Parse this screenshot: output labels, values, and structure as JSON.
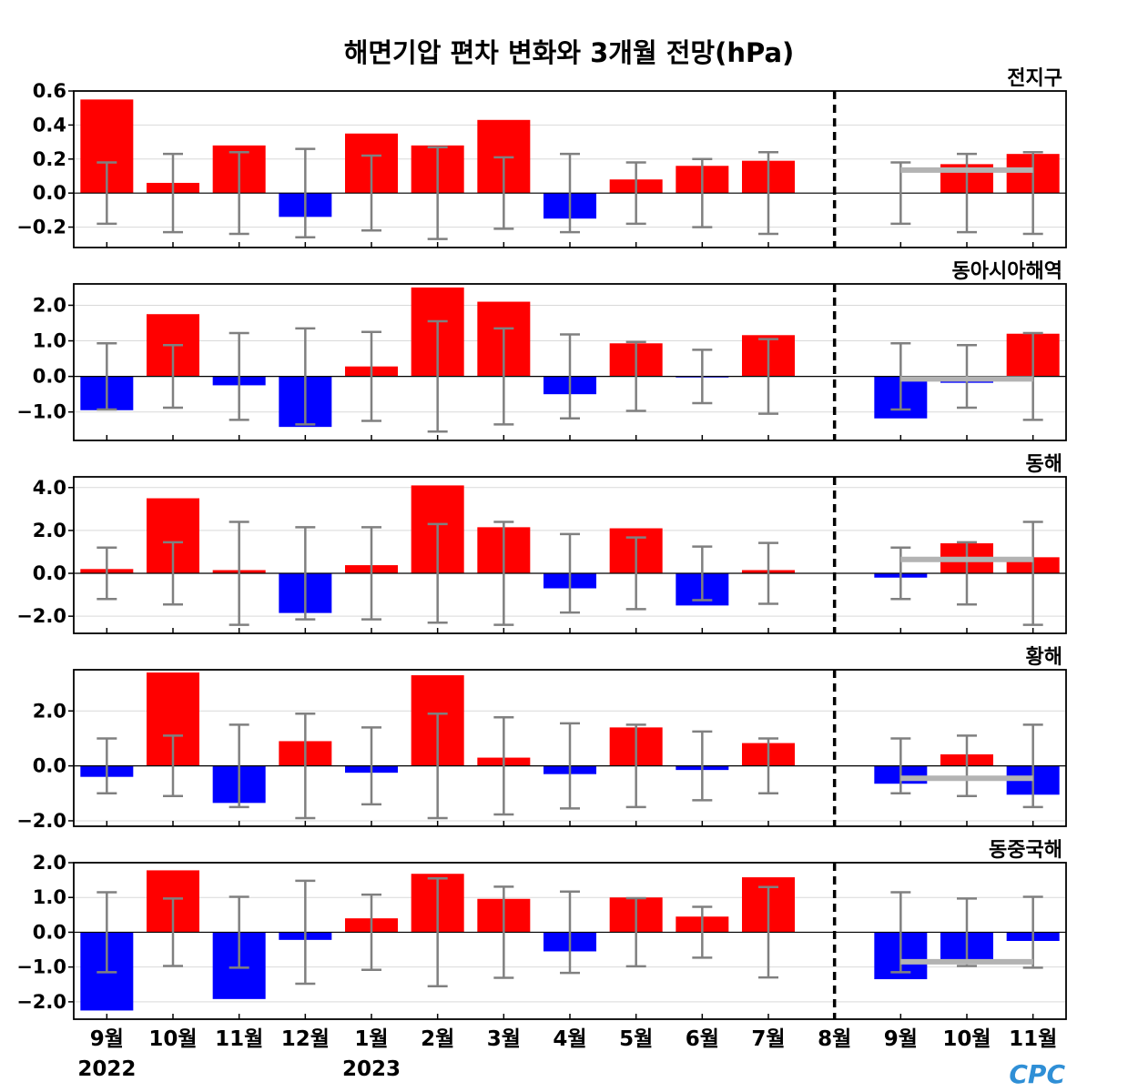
{
  "chart_data": {
    "type": "bar",
    "title": "해면기압 편차 변화와 3개월 전망(hPa)",
    "categories": [
      "9월",
      "10월",
      "11월",
      "12월",
      "1월",
      "2월",
      "3월",
      "4월",
      "5월",
      "6월",
      "7월",
      "8월",
      "9월",
      "10월",
      "11월"
    ],
    "year_labels": [
      {
        "index": 0,
        "label": "2022"
      },
      {
        "index": 4,
        "label": "2023"
      }
    ],
    "forecast_divider_after_index": 11,
    "colors": {
      "positive": "#ff0000",
      "negative": "#0000ff",
      "error_bar": "#808080",
      "forecast_line": "#b3b3b3",
      "divider": "#000000"
    },
    "logo_text": "CPC",
    "panels": [
      {
        "title": "전지구",
        "ylim": [
          -0.32,
          0.6
        ],
        "yticks": [
          -0.2,
          0.0,
          0.2,
          0.4,
          0.6
        ],
        "ytick_labels": [
          "−0.2",
          "0.0",
          "0.2",
          "0.4",
          "0.6"
        ],
        "values": [
          0.55,
          0.06,
          0.28,
          -0.14,
          0.35,
          0.28,
          0.43,
          -0.15,
          0.08,
          0.16,
          0.19,
          0.0,
          0.0,
          0.17,
          0.23
        ],
        "error_bars": [
          0.18,
          0.23,
          0.24,
          0.26,
          0.22,
          0.27,
          0.21,
          0.23,
          0.18,
          0.2,
          0.24,
          null,
          0.18,
          0.23,
          0.24
        ],
        "forecast_value": 0.135
      },
      {
        "title": "동아시아해역",
        "ylim": [
          -1.8,
          2.6
        ],
        "yticks": [
          -1.0,
          0.0,
          1.0,
          2.0
        ],
        "ytick_labels": [
          "−1.0",
          "0.0",
          "1.0",
          "2.0"
        ],
        "values": [
          -0.95,
          1.75,
          -0.25,
          -1.42,
          0.28,
          2.5,
          2.1,
          -0.5,
          0.93,
          -0.03,
          1.16,
          0.0,
          -1.18,
          -0.18,
          1.2
        ],
        "error_bars": [
          0.93,
          0.88,
          1.22,
          1.35,
          1.25,
          1.55,
          1.35,
          1.18,
          0.97,
          0.75,
          1.05,
          null,
          0.93,
          0.88,
          1.22
        ],
        "forecast_value": -0.07
      },
      {
        "title": "동해",
        "ylim": [
          -2.8,
          4.5
        ],
        "yticks": [
          -2.0,
          0.0,
          2.0,
          4.0
        ],
        "ytick_labels": [
          "−2.0",
          "0.0",
          "2.0",
          "4.0"
        ],
        "values": [
          0.2,
          3.5,
          0.15,
          -1.85,
          0.38,
          4.1,
          2.15,
          -0.7,
          2.1,
          -1.5,
          0.15,
          0.0,
          -0.2,
          1.4,
          0.75
        ],
        "error_bars": [
          1.2,
          1.45,
          2.4,
          2.15,
          2.15,
          2.3,
          2.4,
          1.83,
          1.67,
          1.25,
          1.42,
          null,
          1.2,
          1.45,
          2.4
        ],
        "forecast_value": 0.65
      },
      {
        "title": "황해",
        "ylim": [
          -2.2,
          3.5
        ],
        "yticks": [
          -2.0,
          0.0,
          2.0
        ],
        "ytick_labels": [
          "−2.0",
          "0.0",
          "2.0"
        ],
        "values": [
          -0.4,
          3.4,
          -1.35,
          0.9,
          -0.25,
          3.3,
          0.3,
          -0.3,
          1.4,
          -0.15,
          0.83,
          0.0,
          -0.65,
          0.42,
          -1.05
        ],
        "error_bars": [
          1.0,
          1.1,
          1.5,
          1.9,
          1.4,
          1.9,
          1.77,
          1.55,
          1.5,
          1.25,
          1.0,
          null,
          1.0,
          1.1,
          1.5
        ],
        "forecast_value": -0.45
      },
      {
        "title": "동중국해",
        "ylim": [
          -2.5,
          2.0
        ],
        "yticks": [
          -2.0,
          -1.0,
          0.0,
          1.0,
          2.0
        ],
        "ytick_labels": [
          "−2.0",
          "−1.0",
          "0.0",
          "1.0",
          "2.0"
        ],
        "values": [
          -2.25,
          1.78,
          -1.92,
          -0.22,
          0.4,
          1.68,
          0.96,
          -0.55,
          1.0,
          0.45,
          1.58,
          0.0,
          -1.35,
          -0.9,
          -0.25
        ],
        "error_bars": [
          1.15,
          0.97,
          1.02,
          1.48,
          1.08,
          1.55,
          1.31,
          1.17,
          0.98,
          0.73,
          1.3,
          null,
          1.15,
          0.97,
          1.02
        ],
        "forecast_value": -0.85
      }
    ]
  }
}
